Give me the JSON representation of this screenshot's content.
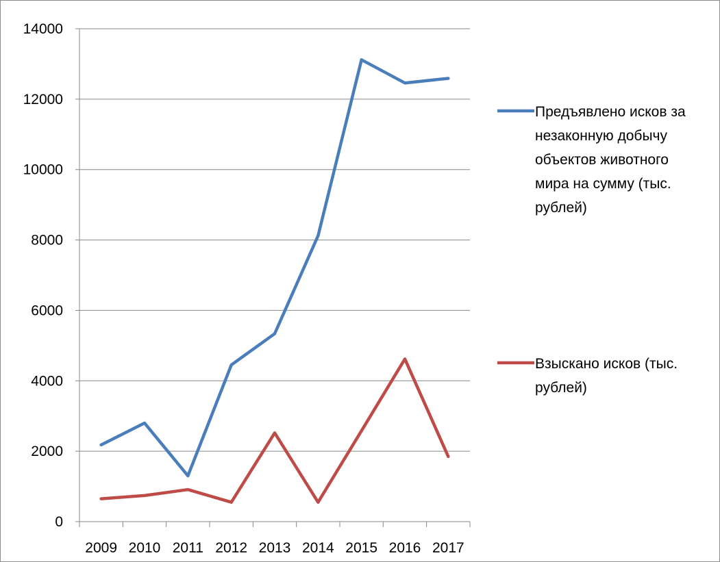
{
  "chart_data": {
    "type": "line",
    "categories": [
      "2009",
      "2010",
      "2011",
      "2012",
      "2013",
      "2014",
      "2015",
      "2016",
      "2017"
    ],
    "ylim": [
      0,
      14000
    ],
    "yticks": [
      "0",
      "2000",
      "4000",
      "6000",
      "8000",
      "10000",
      "12000",
      "14000"
    ],
    "grid": true,
    "legend_position": "right",
    "series": [
      {
        "name": "Предъявлено исков за незаконную добычу объектов животного мира на сумму (тыс. рублей)",
        "name_lines": [
          "Предъявлено исков за",
          "незаконную добычу",
          "объектов животного",
          "мира на сумму (тыс.",
          "рублей)"
        ],
        "color": "#4a7ebb",
        "values": [
          2180,
          2800,
          1300,
          4450,
          5340,
          8120,
          13120,
          12460,
          12590
        ]
      },
      {
        "name": "Взыскано исков (тыс. рублей)",
        "name_lines": [
          "Взыскано исков (тыс.",
          "рублей)"
        ],
        "color": "#be4b48",
        "values": [
          650,
          740,
          910,
          550,
          2520,
          550,
          2580,
          4620,
          1850
        ]
      }
    ]
  }
}
